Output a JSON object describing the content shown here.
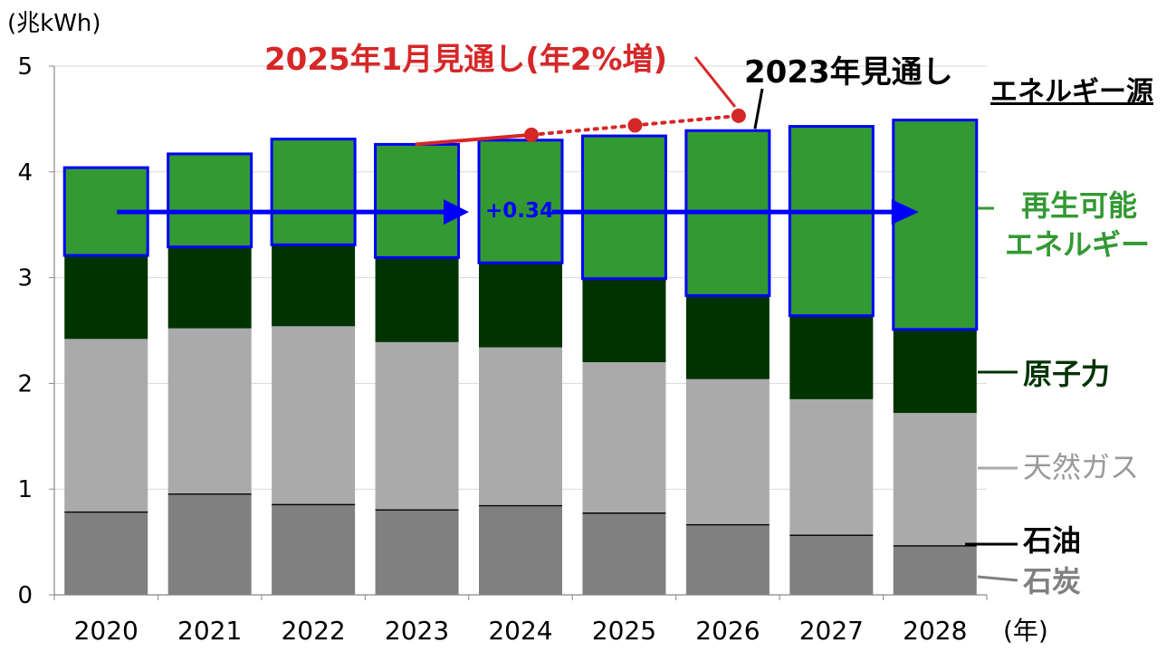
{
  "colors": {
    "coal": "#808080",
    "oil": "#000000",
    "gas": "#aaaaaa",
    "nuclear": "#003300",
    "renewable": "#339933",
    "renewable_border": "#0000ff",
    "arrow": "#0000ff",
    "forecast_2025": "#d62728",
    "text_black": "#000000",
    "text_gas": "#999999",
    "text_coal": "#808080",
    "text_green": "#339933",
    "text_nuclear": "#003300",
    "axis": "#888888",
    "grid": "#d9d9d9"
  },
  "chart_data": {
    "type": "bar",
    "stacked": true,
    "ylabel": "(兆kWh)",
    "x_unit_label": "(年)",
    "ylim": [
      0,
      5
    ],
    "yticks": [
      "0",
      "1",
      "2",
      "3",
      "4",
      "5"
    ],
    "grid": true,
    "categories": [
      "2020",
      "2021",
      "2022",
      "2023",
      "2024",
      "2025",
      "2026",
      "2027",
      "2028"
    ],
    "legend_title": "エネルギー源",
    "series": [
      {
        "key": "coal",
        "name": "石炭",
        "values": [
          0.78,
          0.95,
          0.85,
          0.8,
          0.84,
          0.77,
          0.66,
          0.56,
          0.46
        ]
      },
      {
        "key": "oil",
        "name": "石油",
        "values": [
          0.01,
          0.01,
          0.01,
          0.01,
          0.01,
          0.01,
          0.01,
          0.01,
          0.01
        ]
      },
      {
        "key": "gas",
        "name": "天然ガス",
        "values": [
          1.63,
          1.56,
          1.68,
          1.58,
          1.49,
          1.42,
          1.37,
          1.28,
          1.25
        ]
      },
      {
        "key": "nuclear",
        "name": "原子力",
        "values": [
          0.79,
          0.77,
          0.77,
          0.8,
          0.8,
          0.79,
          0.79,
          0.79,
          0.79
        ]
      },
      {
        "key": "renewable",
        "name": [
          "再生可能",
          "エネルギー"
        ],
        "values": [
          0.83,
          0.88,
          1.0,
          1.07,
          1.16,
          1.35,
          1.56,
          1.79,
          1.98
        ]
      }
    ],
    "forecast_2025": {
      "label": "2025年1月見通し(年2%増)",
      "points": [
        {
          "x": "2024",
          "y": 4.35
        },
        {
          "x": "2025",
          "y": 4.44
        },
        {
          "x": "2026",
          "y": 4.53
        }
      ],
      "solid_from": {
        "x": "2023",
        "y": 4.26
      }
    },
    "forecast_2023": {
      "label": "2023年見通し"
    },
    "arrow": {
      "from": "2020",
      "to": "2028",
      "y": 3.62,
      "label": "+0.34"
    }
  }
}
